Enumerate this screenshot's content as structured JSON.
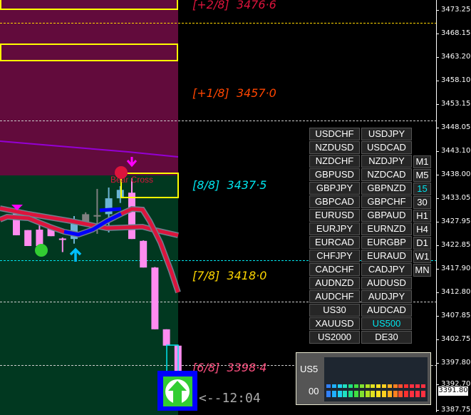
{
  "price_axis": {
    "ticks": [
      "3473.25",
      "3468.15",
      "3463.20",
      "3458.10",
      "3453.15",
      "3448.05",
      "3443.10",
      "3438.00",
      "3433.05",
      "3427.95",
      "3422.85",
      "3417.90",
      "3412.80",
      "3407.85",
      "3402.75",
      "3397.80",
      "3392.70",
      "3387.75"
    ],
    "current_price": "3391.80"
  },
  "murrey": [
    {
      "level": "[+2/8]",
      "price": "3476·6",
      "color": "#dc143c"
    },
    {
      "level": "[+1/8]",
      "price": "3457·0",
      "color": "#ff4500"
    },
    {
      "level": "[8/8]",
      "price": "3437·5",
      "color": "#00e5ee"
    },
    {
      "level": "[7/8]",
      "price": "3418·0",
      "color": "#ffd700"
    },
    {
      "level": "[6/8]",
      "price": "3398·4",
      "color": "#ff5080"
    }
  ],
  "signal_label": "Bear Cross",
  "candle_timer": "<--12:04",
  "symbols": [
    [
      "USDCHF",
      "USDJPY"
    ],
    [
      "NZDUSD",
      "USDCAD"
    ],
    [
      "NZDCHF",
      "NZDJPY"
    ],
    [
      "GBPUSD",
      "NZDCAD"
    ],
    [
      "GBPJPY",
      "GBPNZD"
    ],
    [
      "GBPCAD",
      "GBPCHF"
    ],
    [
      "EURUSD",
      "GBPAUD"
    ],
    [
      "EURJPY",
      "EURNZD"
    ],
    [
      "EURCAD",
      "EURGBP"
    ],
    [
      "CHFJPY",
      "EURAUD"
    ],
    [
      "CADCHF",
      "CADJPY"
    ],
    [
      "AUDNZD",
      "AUDUSD"
    ],
    [
      "AUDCHF",
      "AUDJPY"
    ],
    [
      "US30",
      "AUDCAD"
    ],
    [
      "XAUUSD",
      "US500"
    ],
    [
      "US2000",
      "DE30"
    ]
  ],
  "active_symbol": "US500",
  "timeframes": [
    "M1",
    "M5",
    "15",
    "30",
    "H1",
    "H4",
    "D1",
    "W1",
    "MN"
  ],
  "active_timeframe": "15",
  "strength_panel": {
    "symbol": "US5",
    "value": "00"
  },
  "candles": [
    {
      "o": 3429.7,
      "h": 3430.5,
      "l": 3425.1,
      "c": 3425.1
    },
    {
      "o": 3426.2,
      "h": 3426.2,
      "l": 3422.8,
      "c": 3422.8
    },
    {
      "o": 3426.3,
      "h": 3427.5,
      "l": 3422.8,
      "c": 3422.8
    },
    {
      "o": 3426.9,
      "h": 3427.3,
      "l": 3424.9,
      "c": 3424.9
    },
    {
      "o": 3424.4,
      "h": 3424.6,
      "l": 3421.5,
      "c": 3424.3
    },
    {
      "o": 3424.3,
      "h": 3429.2,
      "l": 3423.3,
      "c": 3427.8
    },
    {
      "o": 3427.8,
      "h": 3430.0,
      "l": 3427.0,
      "c": 3429.6
    },
    {
      "o": 3429.2,
      "h": 3435.0,
      "l": 3425.4,
      "c": 3429.4
    },
    {
      "o": 3429.6,
      "h": 3435.3,
      "l": 3425.7,
      "c": 3433.0
    },
    {
      "o": 3433.0,
      "h": 3435.6,
      "l": 3432.0,
      "c": 3434.8
    },
    {
      "o": 3434.2,
      "h": 3437.3,
      "l": 3424.3,
      "c": 3424.3
    },
    {
      "o": 3423.9,
      "h": 3424.0,
      "l": 3418.2,
      "c": 3418.2
    },
    {
      "o": 3418.2,
      "h": 3418.3,
      "l": 3405.0,
      "c": 3405.0
    },
    {
      "o": 3405.0,
      "h": 3405.0,
      "l": 3401.5,
      "c": 3401.5
    },
    {
      "o": 3401.5,
      "h": 3401.5,
      "l": 3396.1,
      "c": 3396.1
    }
  ],
  "colors": {
    "bull": "#6cb4d4",
    "bear": "#ff8cf0",
    "neutral": "#808080",
    "upper_zone": "#620b3c",
    "lower_zone": "#013820"
  }
}
